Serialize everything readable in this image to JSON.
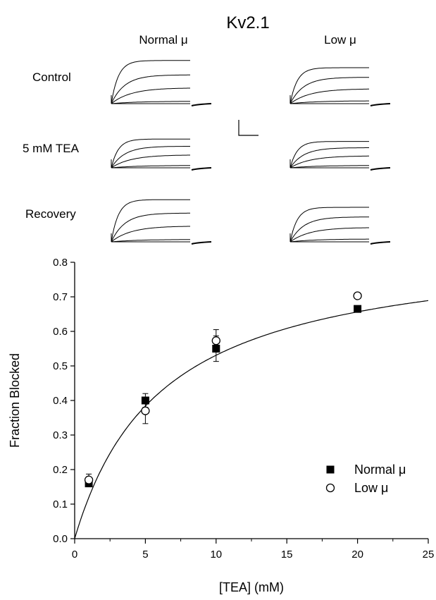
{
  "figure_title": "Kv2.1",
  "traces_panel": {
    "column_labels": [
      "Normal μ",
      "Low μ"
    ],
    "row_labels": [
      "Control",
      "5 mM TEA",
      "Recovery"
    ],
    "trace_amplitudes": {
      "Control": [
        [
          0.9,
          0.6,
          0.33,
          0.05
        ],
        [
          0.75,
          0.55,
          0.31,
          0.06
        ]
      ],
      "5 mM TEA": [
        [
          0.6,
          0.45,
          0.27,
          0.05
        ],
        [
          0.55,
          0.42,
          0.25,
          0.05
        ]
      ],
      "Recovery": [
        [
          0.88,
          0.6,
          0.33,
          0.05
        ],
        [
          0.72,
          0.52,
          0.3,
          0.06
        ]
      ]
    }
  },
  "chart_data": {
    "type": "scatter",
    "xlabel": "[TEA] (mM)",
    "ylabel": "Fraction Blocked",
    "xlim": [
      0,
      25
    ],
    "ylim": [
      0,
      0.8
    ],
    "x_ticks": [
      "0",
      "5",
      "10",
      "15",
      "20",
      "25"
    ],
    "y_ticks": [
      "0.0",
      "0.1",
      "0.2",
      "0.3",
      "0.4",
      "0.5",
      "0.6",
      "0.7",
      "0.8"
    ],
    "legend_position": "bottom-right",
    "series": [
      {
        "name": "Normal μ",
        "marker": "filled-square",
        "x": [
          1,
          5,
          10,
          20
        ],
        "y": [
          0.16,
          0.4,
          0.55,
          0.665
        ],
        "err": [
          0.0,
          0.02,
          0.037,
          0.0
        ]
      },
      {
        "name": "Low μ",
        "marker": "open-circle",
        "x": [
          1,
          5,
          10,
          20
        ],
        "y": [
          0.17,
          0.37,
          0.573,
          0.703
        ],
        "err": [
          0.017,
          0.037,
          0.032,
          0.0
        ]
      }
    ],
    "fit": {
      "model": "Fmax*C/(C+Kd)",
      "Fmax": 0.86,
      "Kd": 6.2
    },
    "grid": false
  }
}
